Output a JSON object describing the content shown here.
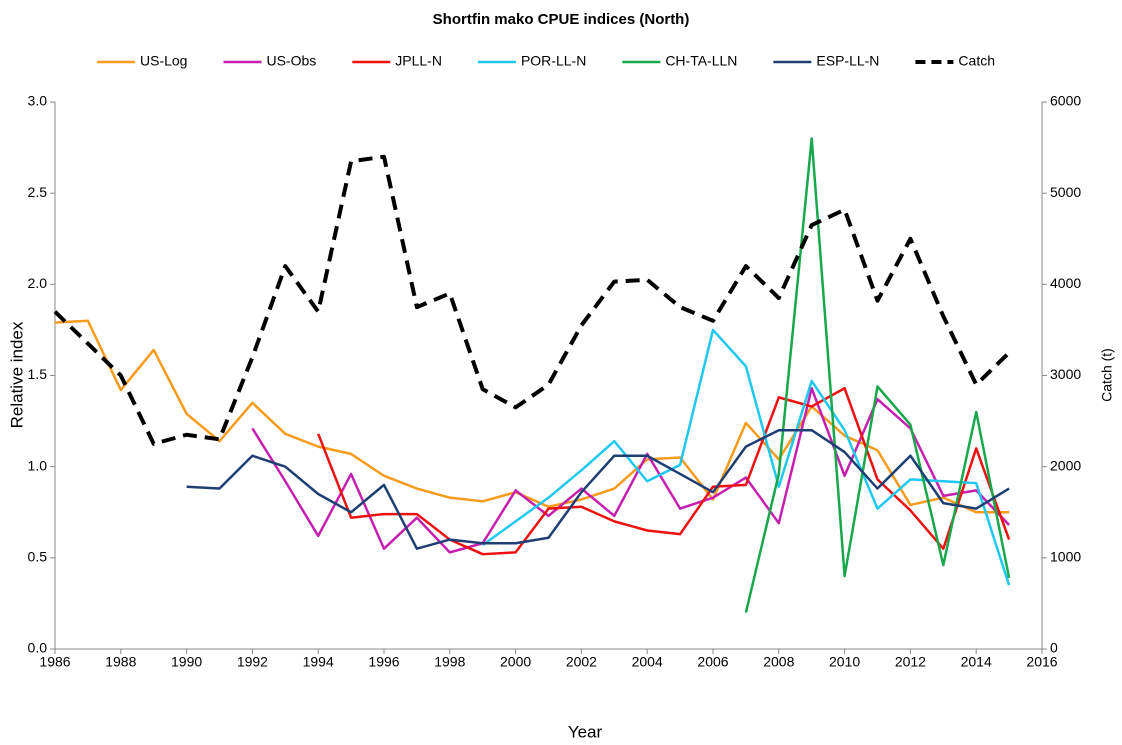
{
  "chart_data": {
    "type": "line",
    "title": "Shortfin mako CPUE indices (North)",
    "xlabel": "Year",
    "ylabel": "Relative index",
    "y2label": "Catch (t)",
    "x": [
      1986,
      1987,
      1988,
      1989,
      1990,
      1991,
      1992,
      1993,
      1994,
      1995,
      1996,
      1997,
      1998,
      1999,
      2000,
      2001,
      2002,
      2003,
      2004,
      2005,
      2006,
      2007,
      2008,
      2009,
      2010,
      2011,
      2012,
      2013,
      2014,
      2015
    ],
    "xlim": [
      1986,
      2016
    ],
    "xticks": [
      1986,
      1988,
      1990,
      1992,
      1994,
      1996,
      1998,
      2000,
      2002,
      2004,
      2006,
      2008,
      2010,
      2012,
      2014,
      2016
    ],
    "ylim": [
      0,
      3
    ],
    "yticks": [
      {
        "value": 0,
        "label": "0.0"
      },
      {
        "value": 0.5,
        "label": "0.5"
      },
      {
        "value": 1,
        "label": "1.0"
      },
      {
        "value": 1.5,
        "label": "1.5"
      },
      {
        "value": 2,
        "label": "2.0"
      },
      {
        "value": 2.5,
        "label": "2.5"
      },
      {
        "value": 3,
        "label": "3.0"
      }
    ],
    "y2lim": [
      0,
      6000
    ],
    "y2ticks": [
      0,
      1000,
      2000,
      3000,
      4000,
      5000,
      6000
    ],
    "grid": false,
    "legend": "top",
    "series": [
      {
        "name": "US-Log",
        "color": "#f79b1c",
        "values": [
          1.79,
          1.8,
          1.42,
          1.64,
          1.29,
          1.14,
          1.35,
          1.18,
          1.11,
          1.07,
          0.95,
          0.88,
          0.83,
          0.81,
          0.86,
          0.78,
          0.82,
          0.88,
          1.04,
          1.05,
          0.82,
          1.24,
          1.04,
          1.33,
          1.17,
          1.09,
          0.79,
          0.83,
          0.75,
          0.75
        ]
      },
      {
        "name": "US-Obs",
        "color": "#c51fb0",
        "values": [
          null,
          null,
          null,
          null,
          null,
          null,
          1.21,
          0.92,
          0.62,
          0.96,
          0.55,
          0.72,
          0.53,
          0.58,
          0.87,
          0.73,
          0.88,
          0.73,
          1.07,
          0.77,
          0.83,
          0.94,
          0.69,
          1.43,
          0.95,
          1.37,
          1.21,
          0.84,
          0.87,
          0.68
        ]
      },
      {
        "name": "JPLL-N",
        "color": "#ee1111",
        "values": [
          null,
          null,
          null,
          null,
          null,
          null,
          null,
          null,
          1.18,
          0.72,
          0.74,
          0.74,
          0.6,
          0.52,
          0.53,
          0.77,
          0.78,
          0.7,
          0.65,
          0.63,
          0.89,
          0.9,
          1.38,
          1.33,
          1.43,
          0.93,
          0.76,
          0.55,
          1.1,
          0.6
        ]
      },
      {
        "name": "POR-LL-N",
        "color": "#1fc8f0",
        "values": [
          null,
          null,
          null,
          null,
          null,
          null,
          null,
          null,
          null,
          null,
          null,
          null,
          null,
          0.57,
          0.7,
          0.83,
          0.98,
          1.14,
          0.92,
          1.01,
          1.75,
          1.55,
          0.89,
          1.47,
          1.2,
          0.77,
          0.93,
          0.92,
          0.91,
          0.35
        ]
      },
      {
        "name": "CH-TA-LLN",
        "color": "#17a84b",
        "values": [
          null,
          null,
          null,
          null,
          null,
          null,
          null,
          null,
          null,
          null,
          null,
          null,
          null,
          null,
          null,
          null,
          null,
          null,
          null,
          null,
          null,
          0.2,
          0.96,
          2.8,
          0.4,
          1.44,
          1.23,
          0.46,
          1.3,
          0.39
        ]
      },
      {
        "name": "ESP-LL-N",
        "color": "#1f3f74",
        "values": [
          null,
          null,
          null,
          null,
          0.89,
          0.88,
          1.06,
          1.0,
          0.85,
          0.75,
          0.9,
          0.55,
          0.6,
          0.58,
          0.58,
          0.61,
          0.86,
          1.06,
          1.06,
          0.96,
          0.86,
          1.11,
          1.2,
          1.2,
          1.08,
          0.88,
          1.06,
          0.8,
          0.77,
          0.88
        ]
      },
      {
        "name": "Catch",
        "color": "#000000",
        "axis": "y2",
        "dashed": true,
        "values": [
          3700,
          3350,
          3000,
          2250,
          2350,
          2300,
          3200,
          4200,
          3700,
          5350,
          5400,
          3750,
          3900,
          2850,
          2650,
          2900,
          3550,
          4030,
          4050,
          3750,
          3600,
          4200,
          3850,
          4650,
          4820,
          3820,
          4500,
          3650,
          2900,
          3250
        ]
      }
    ]
  }
}
